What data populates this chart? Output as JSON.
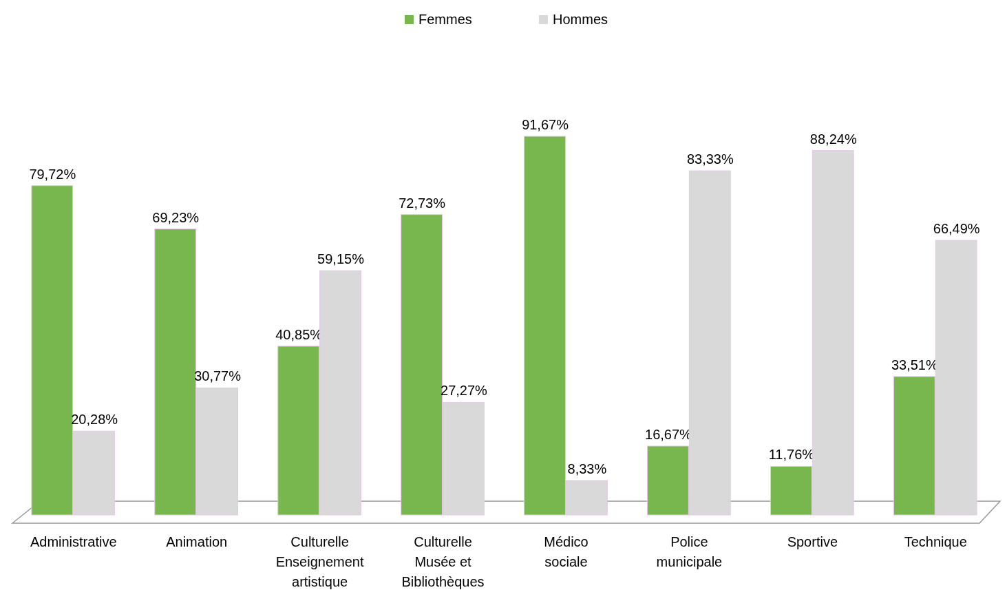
{
  "chart_data": {
    "type": "bar",
    "categories": [
      "Administrative",
      "Animation",
      "Culturelle Enseignement artistique",
      "Culturelle Musée et Bibliothèques",
      "Médico sociale",
      "Police municipale",
      "Sportive",
      "Technique"
    ],
    "series": [
      {
        "name": "Femmes",
        "color": "#77b74d",
        "values": [
          79.72,
          69.23,
          40.85,
          72.73,
          91.67,
          16.67,
          11.76,
          33.51
        ],
        "value_labels": [
          "79,72%",
          "69,23%",
          "40,85%",
          "72,73%",
          "91,67%",
          "16,67%",
          "11,76%",
          "33,51%"
        ]
      },
      {
        "name": "Hommes",
        "color": "#d9d9d9",
        "values": [
          20.28,
          30.77,
          59.15,
          27.27,
          8.33,
          83.33,
          88.24,
          66.49
        ],
        "value_labels": [
          "20,28%",
          "30,77%",
          "59,15%",
          "27,27%",
          "8,33%",
          "83,33%",
          "88,24%",
          "66,49%"
        ]
      }
    ],
    "legend": "top"
  }
}
